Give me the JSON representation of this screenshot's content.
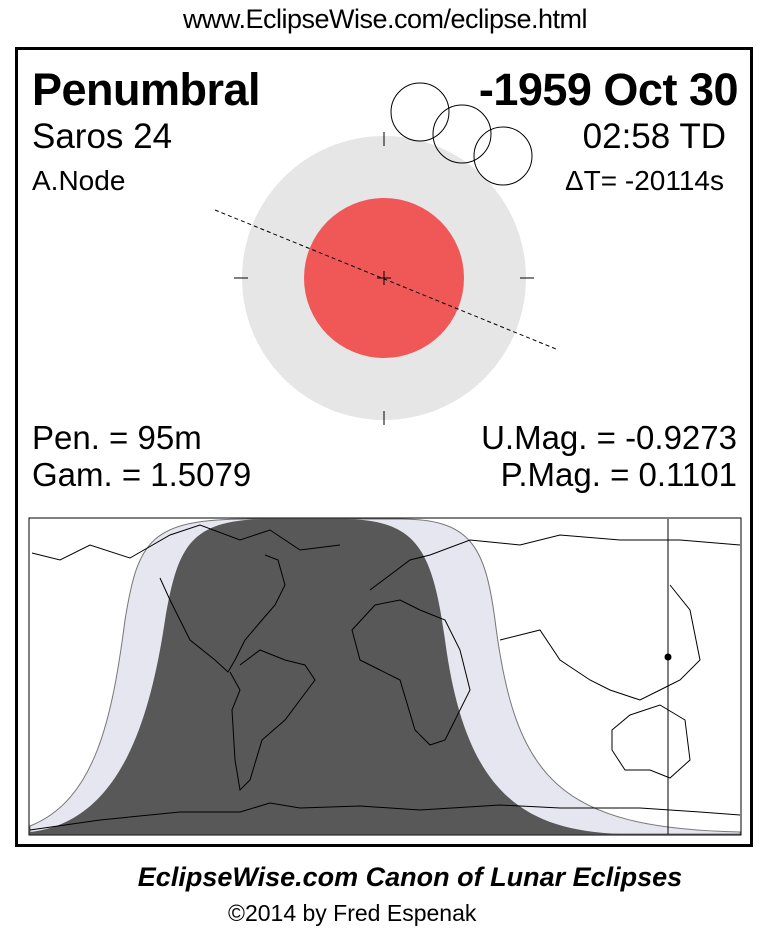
{
  "header": {
    "url": "www.EclipseWise.com/eclipse.html"
  },
  "eclipse": {
    "type": "Penumbral",
    "date": "-1959 Oct 30",
    "saros": "Saros  24",
    "time": "02:58 TD",
    "node": "A.Node",
    "delta_t": "ΔT= -20114s",
    "pen_duration": "Pen. =  95m",
    "gamma": "Gam. = 1.5079",
    "umbral_magnitude": "U.Mag. = -0.9273",
    "penumbral_magnitude": "P.Mag. = 0.1101"
  },
  "colors": {
    "umbra": "#f05858",
    "penumbra": "#e6e6e6",
    "map_umbra_visibility": "#585858",
    "map_penumbra_visibility": "#e6e6f0"
  },
  "footer": {
    "title": "EclipseWise.com Canon of Lunar Eclipses",
    "copyright": "©2014 by Fred Espenak"
  }
}
